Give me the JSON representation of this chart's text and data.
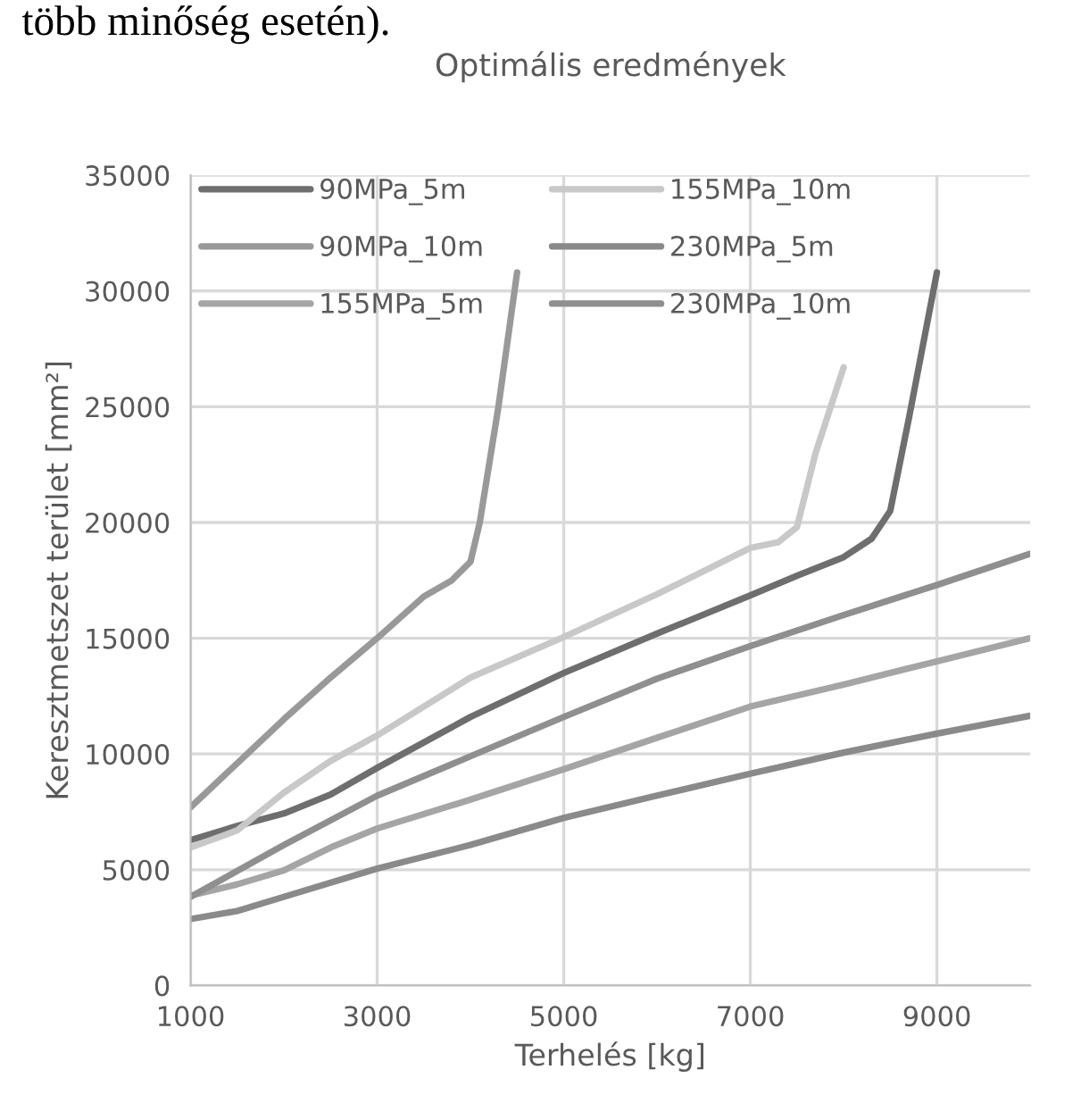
{
  "chart_data": {
    "type": "line",
    "title": "Optimális eredmények",
    "xlabel": "Terhelés [kg]",
    "ylabel": "Keresztmetszet terület [mm²]",
    "annotations": [
      "több minőség esetén)."
    ],
    "xlim": [
      1000,
      10000
    ],
    "xticks": [
      1000,
      3000,
      5000,
      7000,
      9000
    ],
    "ylim": [
      0,
      35000
    ],
    "yticks": [
      0,
      5000,
      10000,
      15000,
      20000,
      25000,
      30000,
      35000
    ],
    "grid": true,
    "legend": "top left",
    "marker": "none",
    "line_style": "solid",
    "series": [
      {
        "name": "90MPa_5m",
        "color": "#6e6e6e",
        "x": [
          1000,
          1500,
          2000,
          2500,
          3000,
          3500,
          4000,
          5000,
          6000,
          7000,
          7500,
          8000,
          8300,
          8500,
          8700,
          9000
        ],
        "values": [
          6280,
          6890,
          7430,
          8250,
          9400,
          10500,
          11600,
          13500,
          15200,
          16850,
          17700,
          18500,
          19300,
          20500,
          24500,
          30800
        ]
      },
      {
        "name": "90MPa_10m",
        "color": "#999999",
        "x": [
          1000,
          1500,
          2000,
          2500,
          3000,
          3500,
          3800,
          4000,
          4100,
          4300,
          4500
        ],
        "values": [
          7700,
          9600,
          11500,
          13300,
          15000,
          16800,
          17500,
          18300,
          20000,
          25000,
          30800
        ]
      },
      {
        "name": "155MPa_5m",
        "color": "#a5a5a5",
        "x": [
          1000,
          1500,
          2000,
          2500,
          3000,
          4000,
          5000,
          6000,
          7000,
          8000,
          9000,
          10000
        ],
        "values": [
          3880,
          4370,
          4970,
          5960,
          6780,
          8030,
          9340,
          10700,
          12050,
          13000,
          14000,
          15000
        ]
      },
      {
        "name": "155MPa_10m",
        "color": "#c8c8c8",
        "x": [
          1000,
          1500,
          2000,
          2500,
          3000,
          4000,
          5000,
          6000,
          7000,
          7300,
          7500,
          7700,
          8000
        ],
        "values": [
          5960,
          6700,
          8330,
          9700,
          10800,
          13300,
          15050,
          16900,
          18900,
          19150,
          19800,
          23000,
          26700
        ]
      },
      {
        "name": "230MPa_5m",
        "color": "#8a8a8a",
        "x": [
          1000,
          1500,
          2000,
          3000,
          4000,
          5000,
          6000,
          7000,
          8000,
          9000,
          10000
        ],
        "values": [
          2870,
          3220,
          3830,
          5050,
          6070,
          7240,
          8200,
          9150,
          10060,
          10880,
          11650
        ]
      },
      {
        "name": "230MPa_10m",
        "color": "#8f8f8f",
        "x": [
          1000,
          2000,
          3000,
          4000,
          5000,
          6000,
          7000,
          8000,
          9000,
          10000
        ],
        "values": [
          3830,
          6070,
          8200,
          9900,
          11600,
          13250,
          14660,
          16000,
          17300,
          18650
        ]
      }
    ]
  }
}
